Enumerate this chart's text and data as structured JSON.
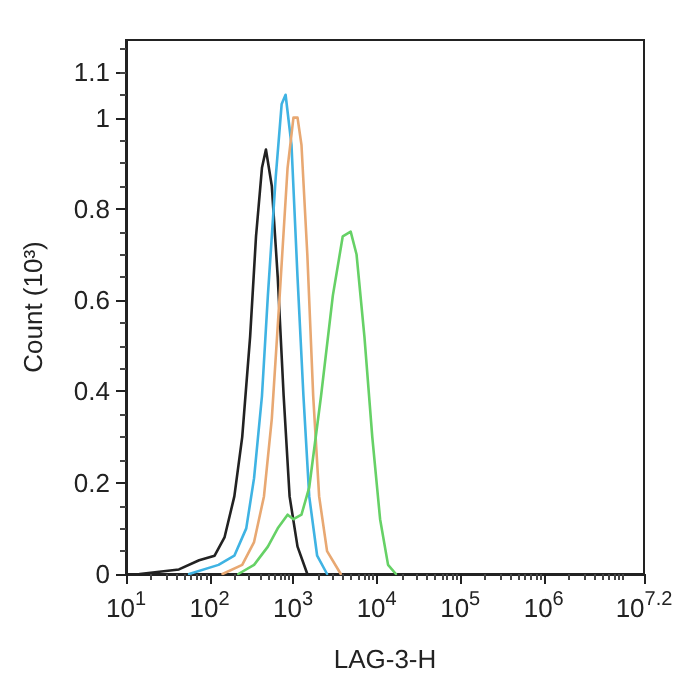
{
  "chart_data": {
    "type": "line",
    "xlabel": "LAG-3-H",
    "ylabel": "Count (10³)",
    "log": "x",
    "grid": false,
    "marker": "none",
    "line_style": "solid",
    "xlim": [
      10,
      15848932
    ],
    "xticks": [
      {
        "value": 10,
        "label": "10$^{1}$"
      },
      {
        "value": 100,
        "label": "10$^{2}$"
      },
      {
        "value": 1000,
        "label": "10$^{3}$"
      },
      {
        "value": 10000,
        "label": "10$^{4}$"
      },
      {
        "value": 100000,
        "label": "10$^{5}$"
      },
      {
        "value": 1000000,
        "label": "10$^{6}$"
      },
      {
        "value": 15848932,
        "label": "10$^{7.2}$"
      }
    ],
    "ylim": [
      0,
      1.17
    ],
    "yticks": [
      0,
      0.2,
      0.4,
      0.6,
      0.8,
      1,
      1.1
    ],
    "series": [
      {
        "color": "#222222",
        "x": [
          14.6,
          43,
          75,
          115,
          151,
          198,
          246,
          306,
          360,
          424,
          473,
          556,
          655,
          771,
          908,
          1130,
          1480
        ],
        "values": [
          0,
          0.01,
          0.03,
          0.04,
          0.08,
          0.17,
          0.3,
          0.52,
          0.74,
          0.89,
          0.93,
          0.85,
          0.65,
          0.39,
          0.17,
          0.06,
          0
        ]
      },
      {
        "color": "#3fb3e3",
        "x": [
          57,
          128,
          198,
          275,
          341,
          424,
          499,
          620,
          730,
          813,
          957,
          1130,
          1330,
          1560,
          1940,
          2550
        ],
        "values": [
          0,
          0.02,
          0.04,
          0.1,
          0.21,
          0.39,
          0.61,
          0.87,
          1.03,
          1.05,
          0.94,
          0.65,
          0.39,
          0.17,
          0.04,
          0
        ]
      },
      {
        "color": "#e8a872",
        "x": [
          143,
          246,
          341,
          448,
          556,
          691,
          859,
          1010,
          1130,
          1260,
          1480,
          1740,
          2050,
          2550,
          3720
        ],
        "values": [
          0,
          0.02,
          0.07,
          0.17,
          0.34,
          0.61,
          0.89,
          1.0,
          1.0,
          0.94,
          0.7,
          0.39,
          0.17,
          0.05,
          0
        ]
      },
      {
        "color": "#66d166",
        "x": [
          221,
          341,
          499,
          655,
          859,
          1010,
          1260,
          1560,
          2160,
          2990,
          3930,
          4890,
          5750,
          7140,
          8870,
          11000,
          13700,
          17000
        ],
        "values": [
          0,
          0.02,
          0.06,
          0.1,
          0.13,
          0.12,
          0.13,
          0.19,
          0.39,
          0.61,
          0.74,
          0.75,
          0.7,
          0.52,
          0.3,
          0.12,
          0.02,
          0
        ]
      }
    ]
  }
}
